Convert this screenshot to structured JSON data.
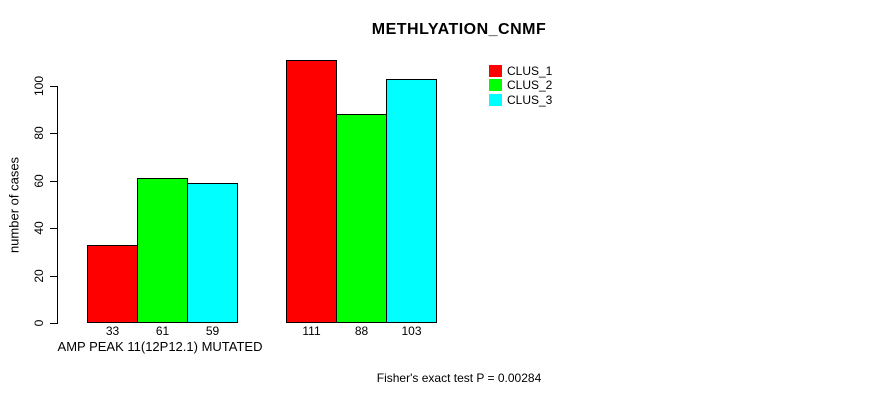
{
  "chart_data": {
    "type": "bar",
    "title": "METHLYATION_CNMF",
    "ylabel": "number of cases",
    "xlabel": "AMP PEAK 11(12P12.1) MUTATED",
    "annotation": "Fisher's exact test P = 0.00284",
    "ylim": [
      0,
      111
    ],
    "yticks": [
      0,
      20,
      40,
      60,
      80,
      100
    ],
    "grid": false,
    "legend_position": "top-right",
    "categories": [
      "AMP PEAK 11(12P12.1) MUTATED",
      ""
    ],
    "series": [
      {
        "name": "CLUS_1",
        "color": "#ff0000",
        "values": [
          33,
          111
        ]
      },
      {
        "name": "CLUS_2",
        "color": "#00ff00",
        "values": [
          61,
          88
        ]
      },
      {
        "name": "CLUS_3",
        "color": "#00ffff",
        "values": [
          59,
          103
        ]
      }
    ],
    "bar_value_labels": [
      [
        33,
        61,
        59
      ],
      [
        111,
        88,
        103
      ]
    ]
  }
}
